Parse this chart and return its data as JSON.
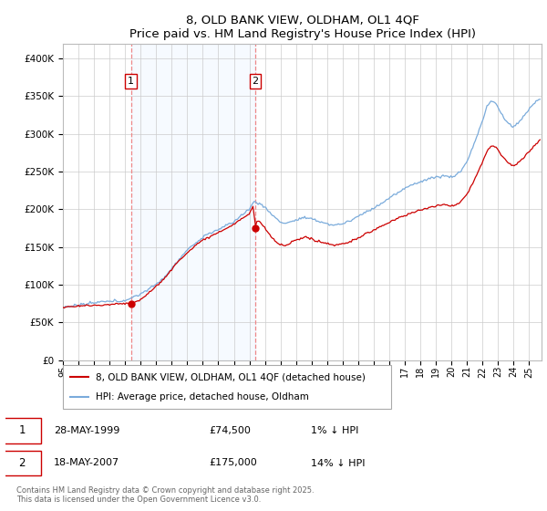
{
  "title": "8, OLD BANK VIEW, OLDHAM, OL1 4QF",
  "subtitle": "Price paid vs. HM Land Registry's House Price Index (HPI)",
  "legend_line1": "8, OLD BANK VIEW, OLDHAM, OL1 4QF (detached house)",
  "legend_line2": "HPI: Average price, detached house, Oldham",
  "annotation1_date": "28-MAY-1999",
  "annotation1_price": "£74,500",
  "annotation1_hpi": "1% ↓ HPI",
  "annotation2_date": "18-MAY-2007",
  "annotation2_price": "£175,000",
  "annotation2_hpi": "14% ↓ HPI",
  "footer": "Contains HM Land Registry data © Crown copyright and database right 2025.\nThis data is licensed under the Open Government Licence v3.0.",
  "purchase1_year": 1999.38,
  "purchase1_value": 74500,
  "purchase2_year": 2007.38,
  "purchase2_value": 175000,
  "hpi_color": "#7aabdb",
  "price_color": "#cc0000",
  "shade_color": "#ddeeff",
  "dashed_color": "#ee8888",
  "ylim": [
    0,
    420000
  ],
  "yticks": [
    0,
    50000,
    100000,
    150000,
    200000,
    250000,
    300000,
    350000,
    400000
  ],
  "ytick_labels": [
    "£0",
    "£50K",
    "£100K",
    "£150K",
    "£200K",
    "£250K",
    "£300K",
    "£350K",
    "£400K"
  ],
  "xstart": 1995.0,
  "xend": 2025.8,
  "background_color": "#ffffff",
  "grid_color": "#cccccc"
}
